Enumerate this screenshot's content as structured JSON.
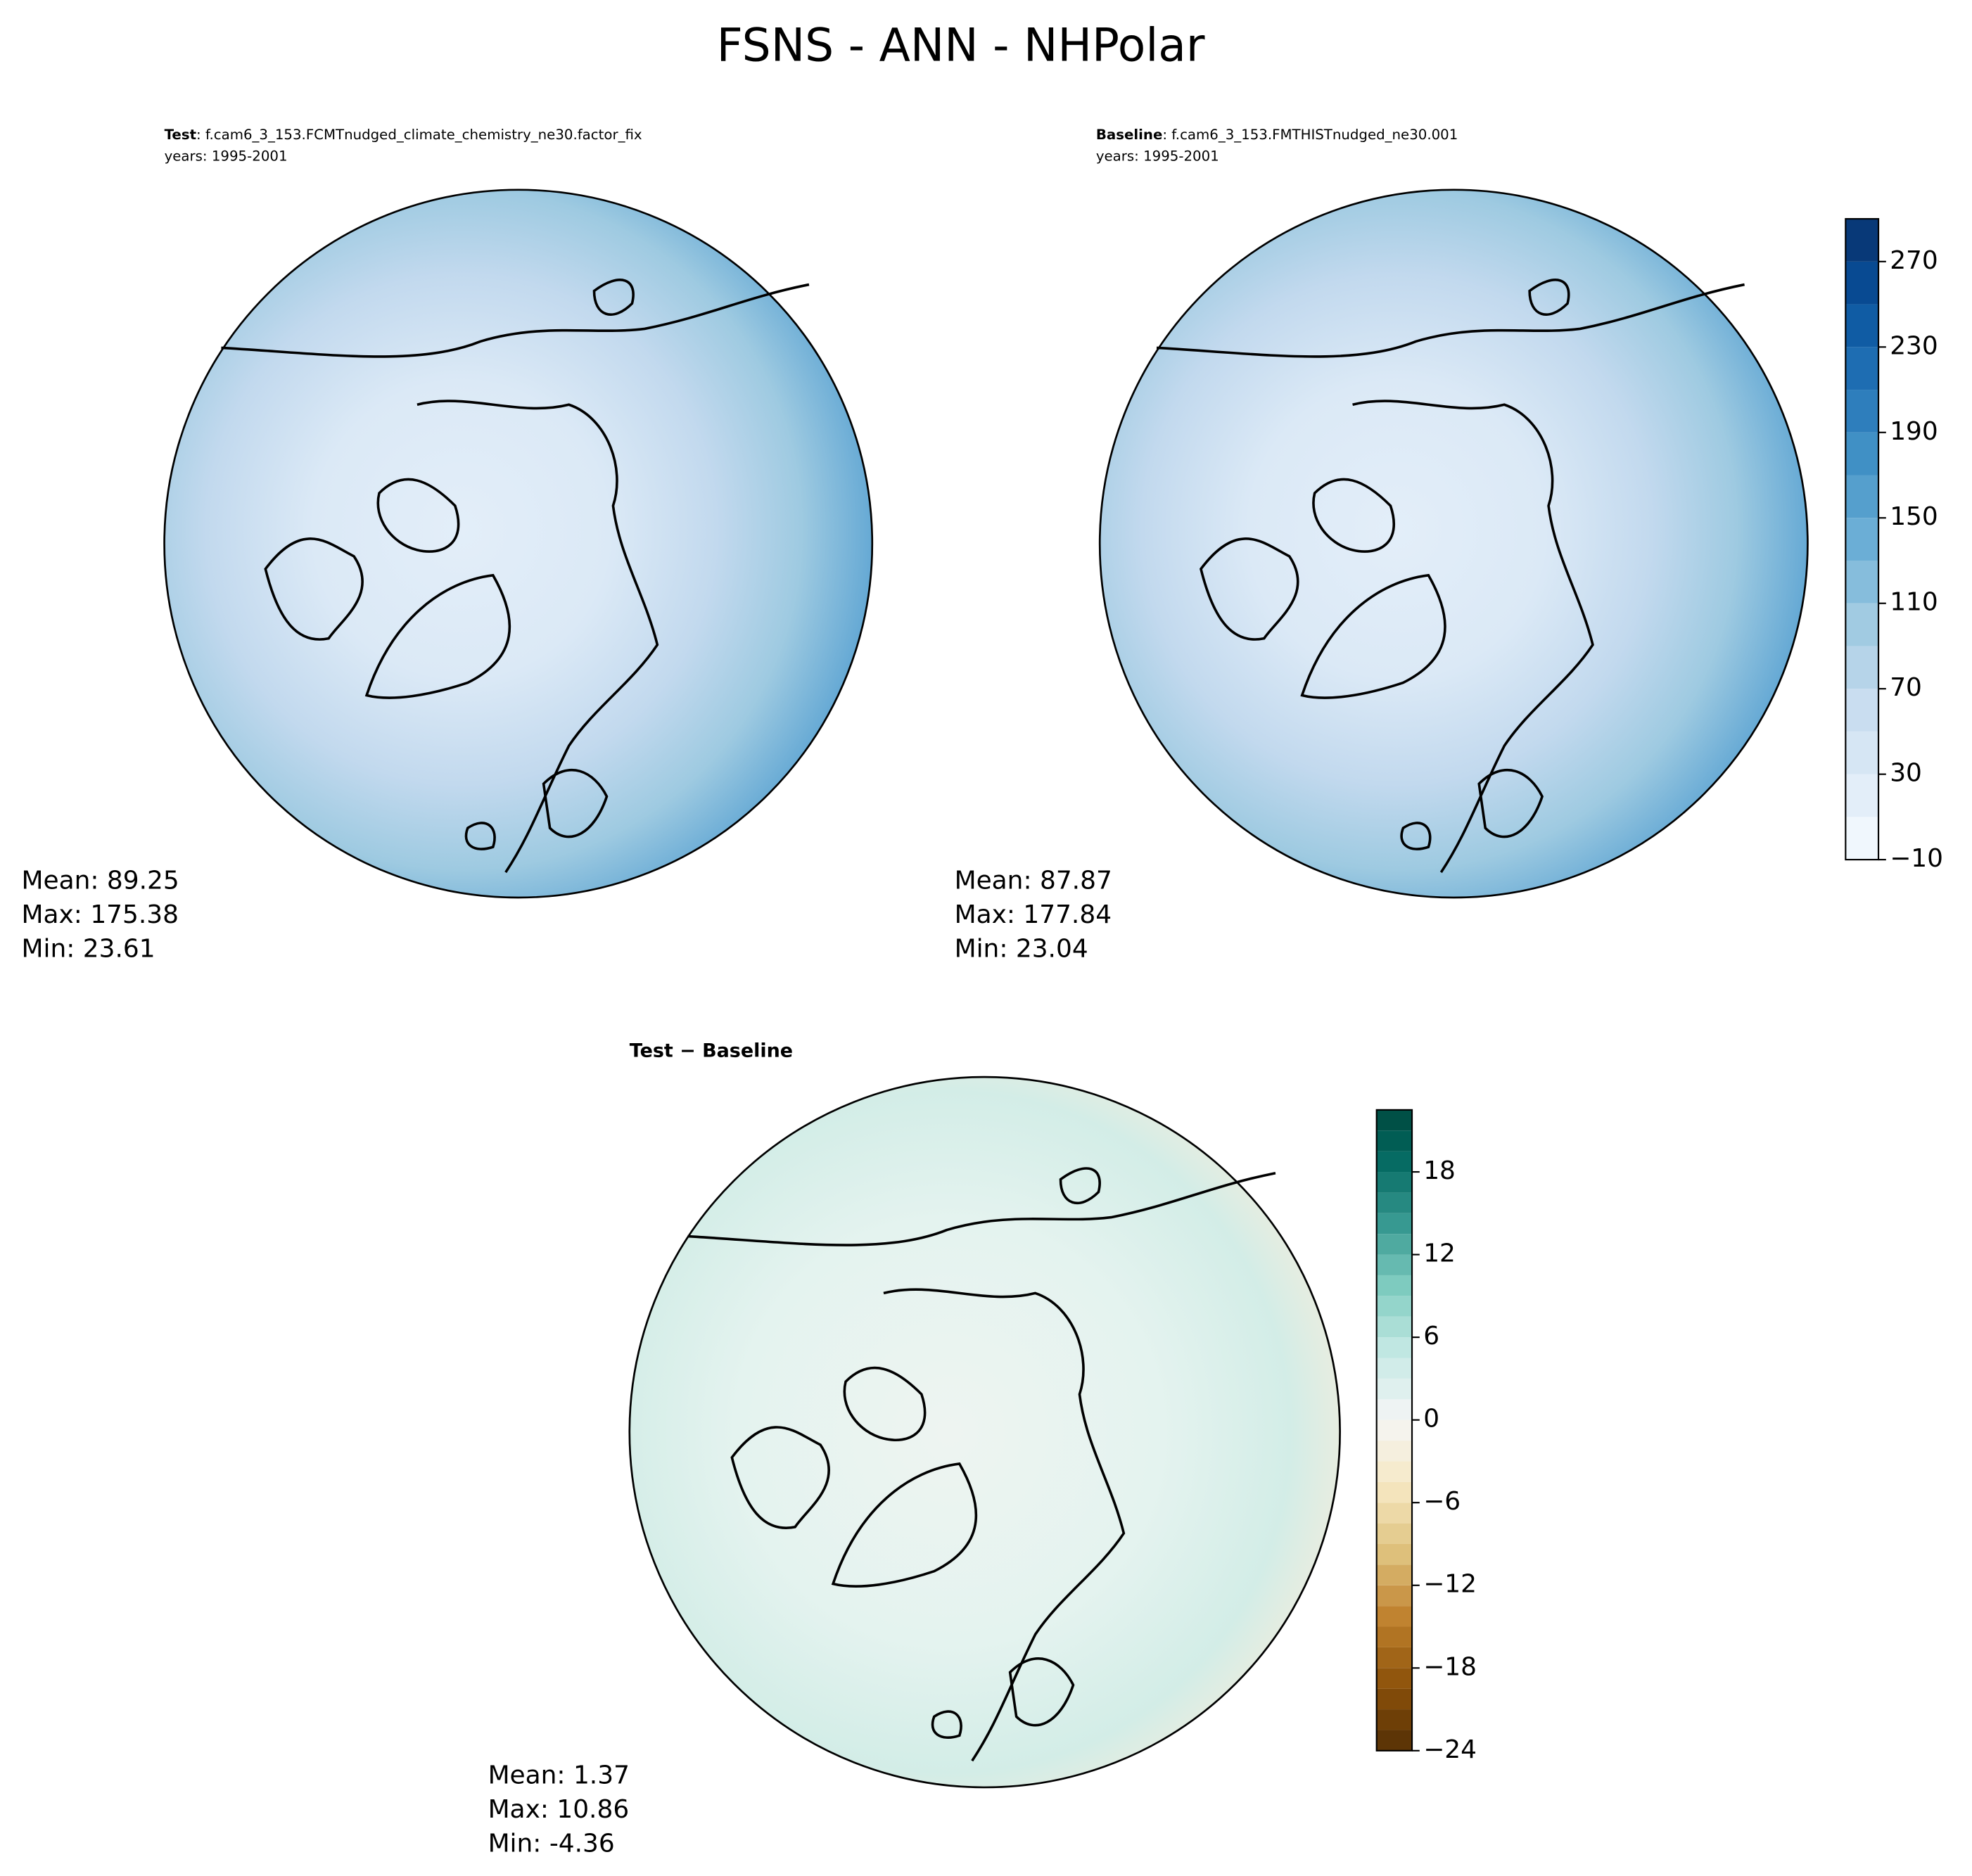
{
  "title": "FSNS - ANN - NHPolar",
  "panels": [
    {
      "label_bold": "Test",
      "label": ": f.cam6_3_153.FCMTnudged_climate_chemistry_ne30.factor_fix",
      "years": "years: 1995-2001",
      "stats": [
        "Mean: 89.25",
        "Max: 175.38",
        "Min: 23.61"
      ]
    },
    {
      "label_bold": "Baseline",
      "label": ": f.cam6_3_153.FMTHISTnudged_ne30.001",
      "years": "years: 1995-2001",
      "stats": [
        "Mean: 87.87",
        "Max: 177.84",
        "Min: 23.04"
      ]
    },
    {
      "label_bold": "Test − Baseline",
      "stats": [
        "Mean:  1.37",
        "Max: 10.86",
        "Min: -4.36"
      ]
    }
  ],
  "colorbars": [
    {
      "colormap": "Blues",
      "lim": [
        -10,
        290
      ],
      "levels": [
        -10,
        10,
        30,
        50,
        70,
        90,
        110,
        130,
        150,
        170,
        190,
        210,
        230,
        250,
        270,
        290
      ],
      "ticks": [
        {
          "value": -10,
          "label": "−10"
        },
        30,
        70,
        110,
        150,
        190,
        230,
        270
      ]
    },
    {
      "colormap": "BrBG",
      "lim": [
        -24,
        22.5
      ],
      "levels": [
        -24,
        -22.5,
        -21,
        -19.5,
        -18,
        -16.5,
        -15,
        -13.5,
        -12,
        -10.5,
        -9,
        -7.5,
        -6,
        -4.5,
        -3,
        -1.5,
        0,
        1.5,
        3,
        4.5,
        6,
        7.5,
        9,
        10.5,
        12,
        13.5,
        15,
        16.5,
        18,
        19.5,
        21,
        22.5
      ],
      "ticks": [
        {
          "value": -24,
          "label": "−24"
        },
        {
          "value": -18,
          "label": "−18"
        },
        {
          "value": -12,
          "label": "−12"
        },
        {
          "value": -6,
          "label": "−6"
        },
        0,
        6,
        12,
        18
      ]
    }
  ]
}
